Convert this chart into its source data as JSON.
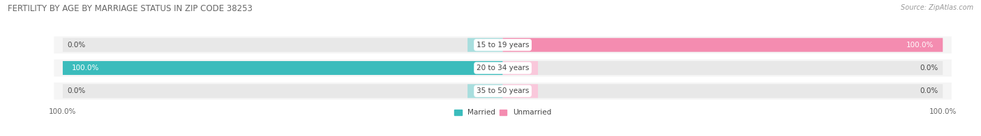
{
  "title": "FERTILITY BY AGE BY MARRIAGE STATUS IN ZIP CODE 38253",
  "source": "Source: ZipAtlas.com",
  "age_groups": [
    "15 to 19 years",
    "20 to 34 years",
    "35 to 50 years"
  ],
  "married": [
    0.0,
    100.0,
    0.0
  ],
  "unmarried": [
    100.0,
    0.0,
    0.0
  ],
  "married_color": "#3bbcbc",
  "unmarried_color": "#f48cb0",
  "married_light_color": "#a8dede",
  "unmarried_light_color": "#f9c8db",
  "bg_color": "#ffffff",
  "bar_bg_color": "#e8e8e8",
  "row_bg_color": "#f5f5f5",
  "title_color": "#666666",
  "source_color": "#999999",
  "label_color": "#444444",
  "label_color_white": "#ffffff",
  "bar_height": 0.6,
  "stub_size": 8.0,
  "xlim": 100,
  "legend_labels": [
    "Married",
    "Unmarried"
  ],
  "tick_label_color": "#666666"
}
